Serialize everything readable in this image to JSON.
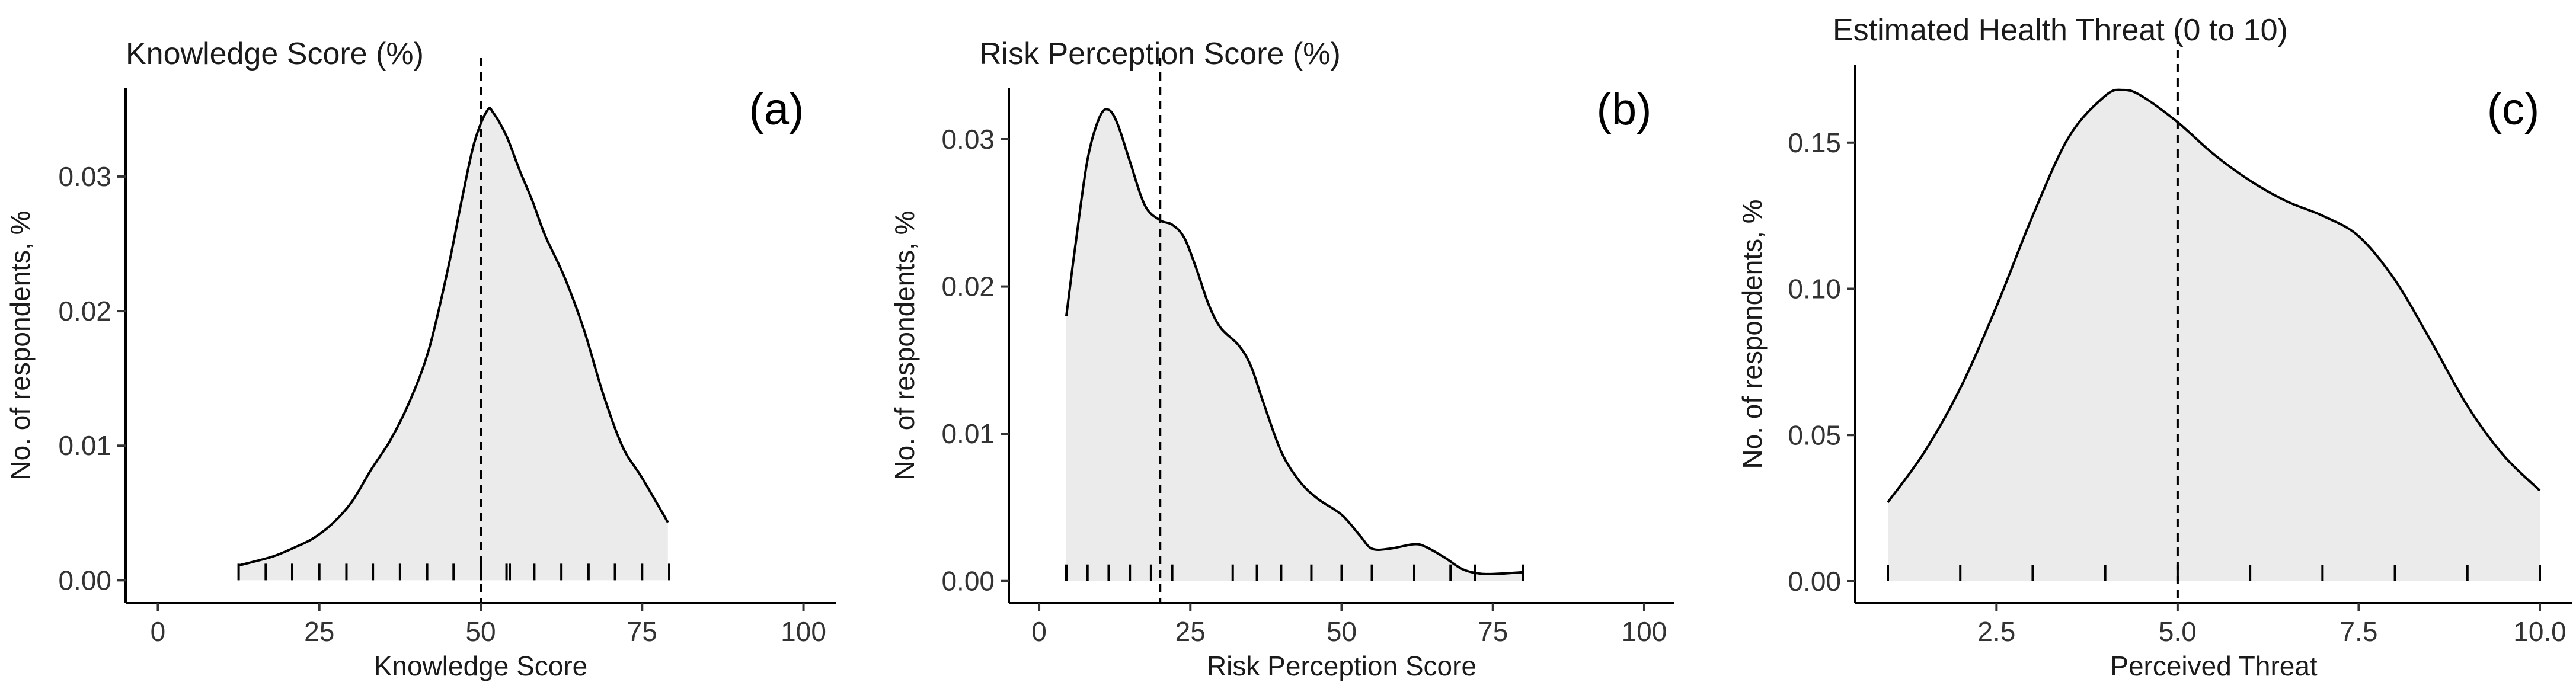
{
  "chart_data": [
    {
      "type": "area",
      "panel_label": "(a)",
      "title": "Knowledge Score (%)",
      "xlabel": "Knowledge Score",
      "ylabel": "No. of respondents, %",
      "xlim": [
        -5,
        105
      ],
      "ylim": [
        -0.0017,
        0.0366
      ],
      "xticks": [
        0,
        25,
        50,
        75,
        100
      ],
      "xtick_labels": [
        "0",
        "25",
        "50",
        "75",
        "100"
      ],
      "yticks": [
        0,
        0.01,
        0.02,
        0.03
      ],
      "ytick_labels": [
        "0.00",
        "0.01",
        "0.02",
        "0.03"
      ],
      "x": [
        12.5,
        15,
        18,
        21,
        24,
        27,
        30,
        33,
        36,
        39,
        42,
        45,
        47,
        49,
        51,
        52,
        54,
        56,
        58,
        60,
        63,
        66,
        69,
        72,
        75,
        79
      ],
      "y": [
        0.0011,
        0.0014,
        0.0018,
        0.0024,
        0.0031,
        0.0042,
        0.0058,
        0.0082,
        0.0104,
        0.0133,
        0.0172,
        0.0233,
        0.0281,
        0.0325,
        0.0349,
        0.0347,
        0.033,
        0.0305,
        0.0282,
        0.0256,
        0.0225,
        0.0186,
        0.0138,
        0.0099,
        0.0076,
        0.0043
      ],
      "mean_line": 50,
      "rug": [
        12.5,
        16.7,
        20.8,
        25,
        29.2,
        33.3,
        37.5,
        41.7,
        45.8,
        50,
        54,
        54.5,
        58.3,
        62.5,
        66.7,
        70.8,
        75,
        79.2
      ]
    },
    {
      "type": "area",
      "panel_label": "(b)",
      "title": "Risk Perception Score (%)",
      "xlabel": "Risk Perception Score",
      "ylabel": "No. of respondents, %",
      "xlim": [
        -5,
        105
      ],
      "ylim": [
        -0.0015,
        0.0335
      ],
      "xticks": [
        0,
        25,
        50,
        75,
        100
      ],
      "xtick_labels": [
        "0",
        "25",
        "50",
        "75",
        "100"
      ],
      "yticks": [
        0,
        0.01,
        0.02,
        0.03
      ],
      "ytick_labels": [
        "0.00",
        "0.01",
        "0.02",
        "0.03"
      ],
      "x": [
        4.5,
        6,
        8,
        10,
        11.5,
        13,
        15,
        17.5,
        20,
        22,
        24,
        26,
        28,
        30,
        33,
        35,
        37,
        40,
        43,
        46,
        50,
        53,
        55,
        58,
        62,
        64,
        67,
        70,
        73,
        76,
        80
      ],
      "y": [
        0.018,
        0.0228,
        0.0286,
        0.0315,
        0.032,
        0.031,
        0.0285,
        0.0255,
        0.0245,
        0.0242,
        0.0233,
        0.0212,
        0.0188,
        0.0172,
        0.016,
        0.0146,
        0.0122,
        0.0088,
        0.0068,
        0.0056,
        0.0045,
        0.0031,
        0.0022,
        0.0022,
        0.0025,
        0.0023,
        0.0016,
        0.0008,
        0.0005,
        0.0005,
        0.0006
      ],
      "mean_line": 20,
      "rug": [
        4.5,
        8,
        11.5,
        15,
        18.5,
        22,
        32,
        36,
        40,
        45,
        50,
        55,
        62,
        68,
        72,
        80
      ]
    },
    {
      "type": "area",
      "panel_label": "(c)",
      "title": "Estimated Health Threat (0 to 10)",
      "xlabel": "Perceived Threat",
      "ylabel": "No. of respondents, %",
      "xlim": [
        0.55,
        10.45
      ],
      "ylim": [
        -0.0075,
        0.1765
      ],
      "xticks": [
        2.5,
        5.0,
        7.5,
        10.0
      ],
      "xtick_labels": [
        "2.5",
        "5.0",
        "7.5",
        "10.0"
      ],
      "yticks": [
        0,
        0.05,
        0.1,
        0.15
      ],
      "ytick_labels": [
        "0.00",
        "0.05",
        "0.10",
        "0.15"
      ],
      "x": [
        1,
        1.5,
        2,
        2.5,
        3,
        3.5,
        4,
        4.25,
        4.5,
        5,
        5.5,
        6,
        6.5,
        7,
        7.5,
        8,
        8.5,
        9,
        9.5,
        10
      ],
      "y": [
        0.027,
        0.044,
        0.066,
        0.094,
        0.125,
        0.152,
        0.166,
        0.168,
        0.166,
        0.157,
        0.146,
        0.137,
        0.13,
        0.125,
        0.118,
        0.103,
        0.082,
        0.06,
        0.043,
        0.031
      ],
      "mean_line": 5,
      "rug": [
        1,
        2,
        3,
        4,
        5,
        6,
        7,
        8,
        9,
        10
      ]
    }
  ]
}
